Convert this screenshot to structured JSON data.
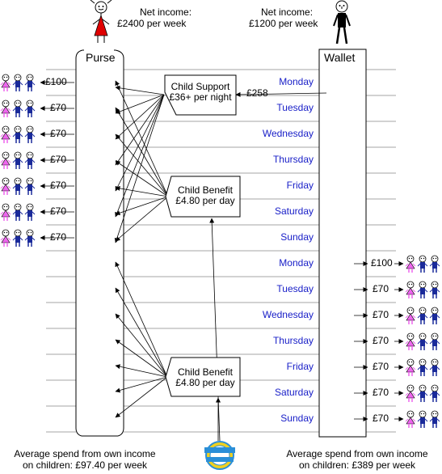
{
  "mother": {
    "income_line1": "Net income:",
    "income_line2": "£2400 per week",
    "figure_icon": "woman-stick-figure-icon"
  },
  "father": {
    "income_line1": "Net income:",
    "income_line2": "£1200 per week",
    "figure_icon": "man-stick-figure-icon"
  },
  "purse": {
    "label": "Purse"
  },
  "wallet": {
    "label": "Wallet"
  },
  "child_support": {
    "line1": "Child Support",
    "line2": "£36+ per night",
    "payment": "£258"
  },
  "child_benefit": [
    {
      "line1": "Child Benefit",
      "line2": "£4.80 per day"
    },
    {
      "line1": "Child Benefit",
      "line2": "£4.80 per day"
    }
  ],
  "social_security_logo": {
    "text": "SOCIAL SECURITY",
    "icon": "social-security-logo-icon"
  },
  "week1_days": [
    "Monday",
    "Tuesday",
    "Wednesday",
    "Thursday",
    "Friday",
    "Saturday",
    "Sunday"
  ],
  "week2_days": [
    "Monday",
    "Tuesday",
    "Wednesday",
    "Thursday",
    "Friday",
    "Saturday",
    "Sunday"
  ],
  "mother_spend": [
    "£100",
    "£70",
    "£70",
    "£70",
    "£70",
    "£70",
    "£70"
  ],
  "father_spend": [
    "£100",
    "£70",
    "£70",
    "£70",
    "£70",
    "£70",
    "£70"
  ],
  "children_icon": "three-children-icon",
  "footer_left": {
    "line1": "Average spend from own income",
    "line2": "on children: £97.40 per week"
  },
  "footer_right": {
    "line1": "Average spend from own income",
    "line2": "on children: £389 per week"
  },
  "colors": {
    "day_text": "#1a20c8",
    "mother_dress": "#e00000",
    "father_figure": "#000000",
    "girl_child": "#ee66ee",
    "boy_child": "#1a2a9a",
    "logo_blue": "#2a8fd8",
    "logo_yellow": "#f0d020"
  }
}
